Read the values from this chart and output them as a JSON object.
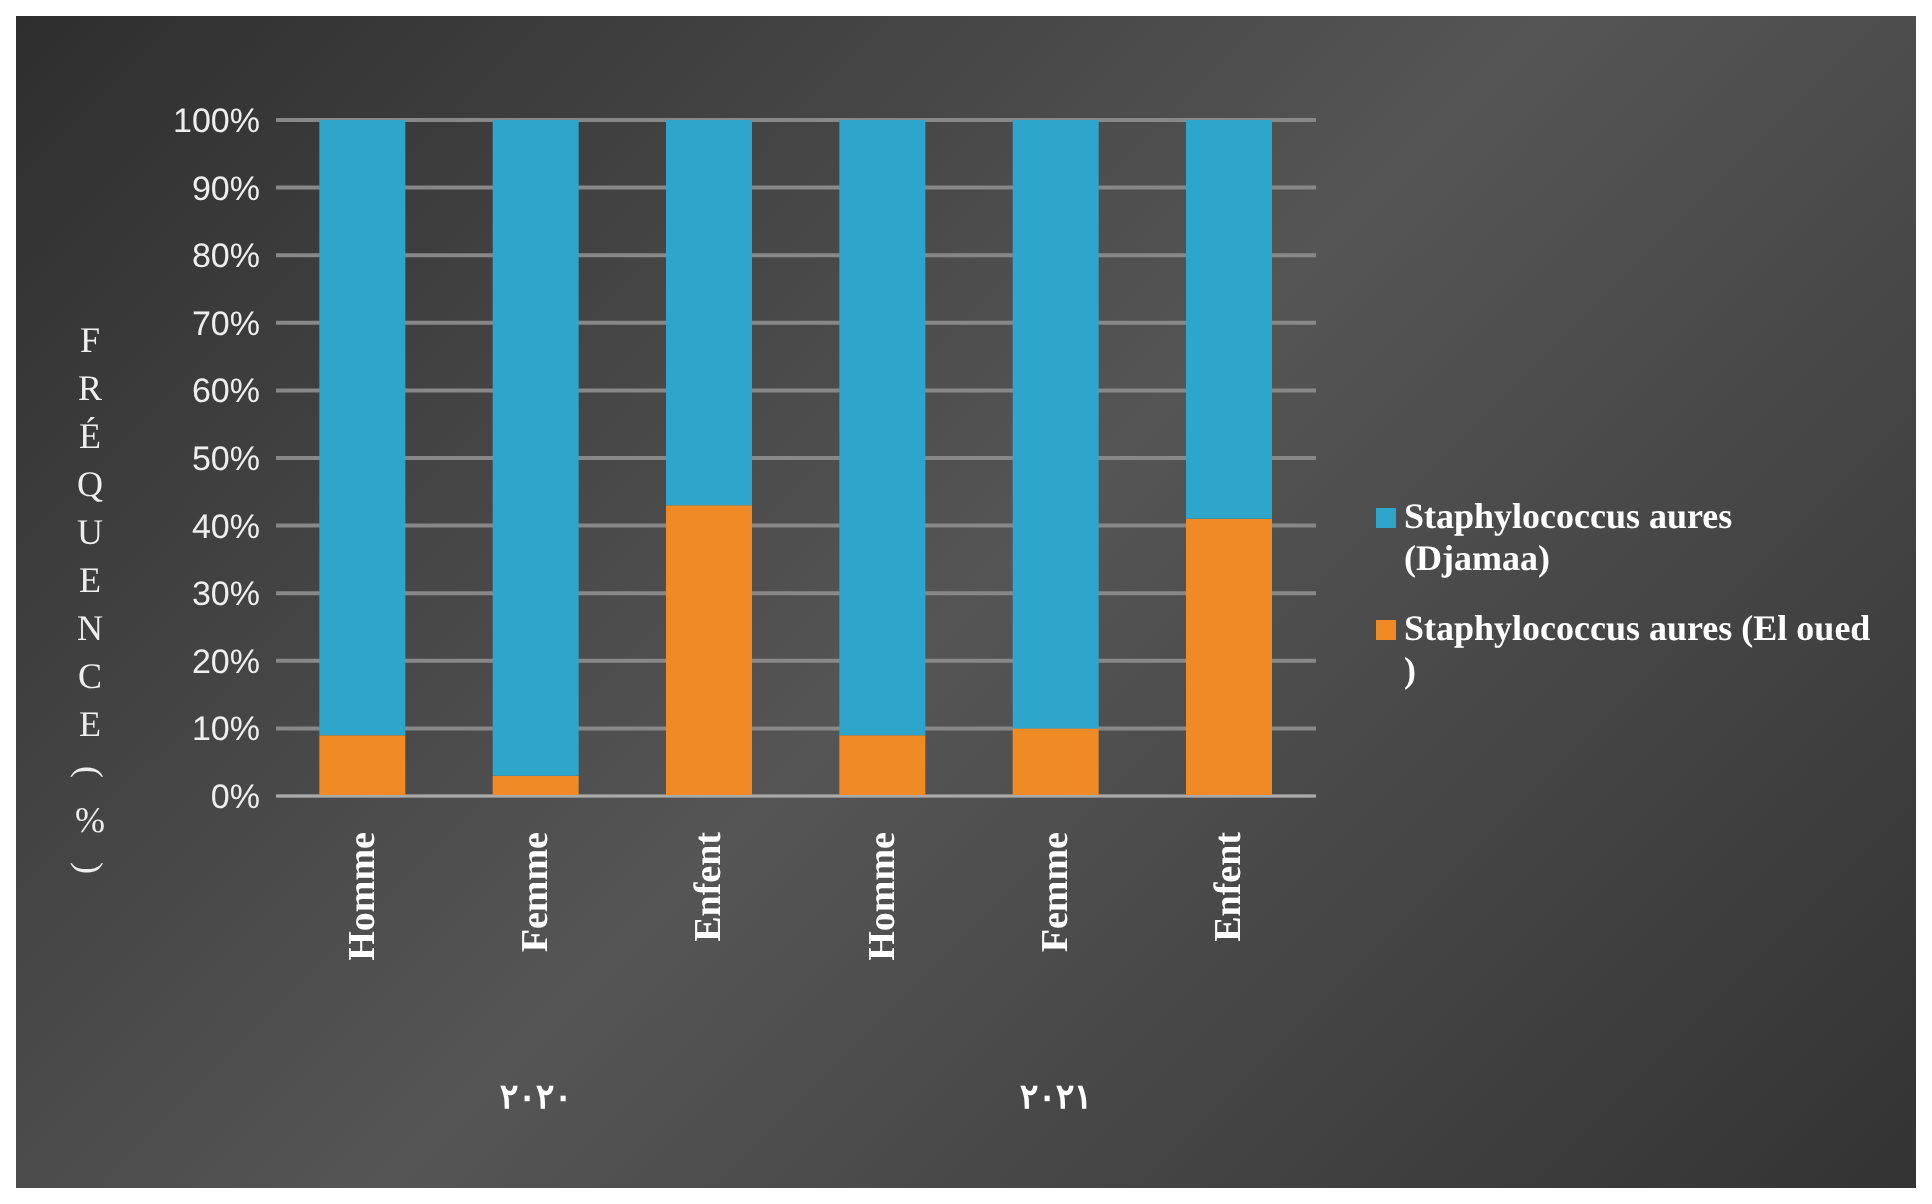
{
  "chart_data": {
    "type": "bar",
    "stacked": true,
    "ylabel": "FRÉQUENCE (%)",
    "categories": [
      "Homme",
      "Femme",
      "Enfent",
      "Homme",
      "Femme",
      "Enfent"
    ],
    "series": [
      {
        "name": "Staphylococcus aures  (El oued )",
        "color": "#f08a24",
        "values": [
          9,
          3,
          43,
          9,
          10,
          41
        ]
      },
      {
        "name": "Staphylococcus aures (Djamaa)",
        "color": "#2ea6cc",
        "values": [
          91,
          97,
          57,
          91,
          90,
          59
        ]
      }
    ],
    "ylim": [
      0,
      100
    ],
    "yticks": [
      {
        "value": 0,
        "label": "0%"
      },
      {
        "value": 10,
        "label": "10%"
      },
      {
        "value": 20,
        "label": "20%"
      },
      {
        "value": 30,
        "label": "30%"
      },
      {
        "value": 40,
        "label": "40%"
      },
      {
        "value": 50,
        "label": "50%"
      },
      {
        "value": 60,
        "label": "60%"
      },
      {
        "value": 70,
        "label": "70%"
      },
      {
        "value": 80,
        "label": "80%"
      },
      {
        "value": 90,
        "label": "90%"
      },
      {
        "value": 100,
        "label": "100%"
      }
    ],
    "grid": "y",
    "legend": "right",
    "annotations": [
      "٢٠٢٠",
      "٢٠٢١"
    ]
  }
}
